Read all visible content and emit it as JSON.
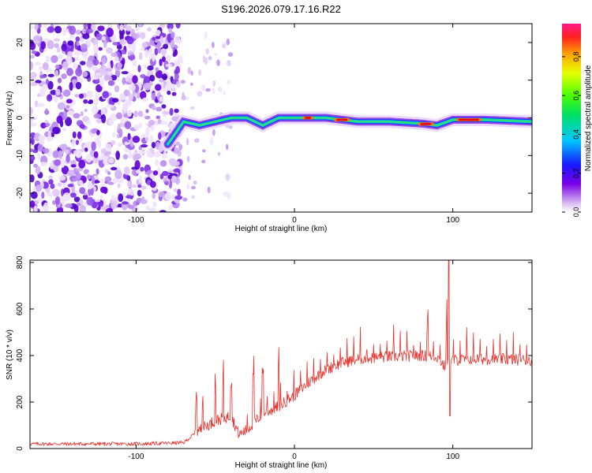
{
  "title": "S196.2026.079.17.16.R22",
  "chart_data": [
    {
      "type": "heatmap",
      "xlabel": "Height of straight line (km)",
      "ylabel": "Frequency (Hz)",
      "xlim": [
        -167,
        150
      ],
      "ylim": [
        -25,
        25
      ],
      "xticks": [
        -100,
        0,
        100
      ],
      "yticks": [
        -20,
        -10,
        0,
        10,
        20
      ],
      "colorbar": {
        "label": "Normalized spectral amplitude",
        "range": [
          0.0,
          0.97
        ],
        "ticks": [
          0.0,
          0.2,
          0.4,
          0.6,
          0.8
        ]
      },
      "ridge": {
        "description": "dominant frequency track",
        "x": [
          -80,
          -70,
          -60,
          -50,
          -40,
          -30,
          -20,
          -10,
          0,
          20,
          40,
          60,
          80,
          90,
          100,
          120,
          150
        ],
        "y": [
          -7,
          -1,
          -2,
          -1,
          0,
          0,
          -2,
          0,
          0,
          0,
          -1,
          -1,
          -1.5,
          -2,
          -0.5,
          -0.5,
          -1
        ]
      }
    },
    {
      "type": "line",
      "xlabel": "Height of straight line (km)",
      "ylabel": "SNR (10 * v/v)",
      "xlim": [
        -167,
        150
      ],
      "ylim": [
        0,
        810
      ],
      "xticks": [
        -100,
        0,
        100
      ],
      "yticks": [
        0,
        200,
        400,
        600,
        800
      ],
      "series": [
        {
          "name": "SNR",
          "color": "#e8312b",
          "anchors_x": [
            -167,
            -100,
            -70,
            -60,
            -50,
            -40,
            -35,
            -30,
            -20,
            -10,
            0,
            10,
            20,
            30,
            40,
            60,
            80,
            90,
            95,
            100,
            110,
            130,
            150
          ],
          "anchors_y": [
            20,
            20,
            25,
            80,
            120,
            140,
            60,
            80,
            150,
            180,
            230,
            290,
            340,
            370,
            385,
            395,
            400,
            395,
            350,
            380,
            385,
            385,
            380
          ],
          "spikes_x": [
            -62,
            -58,
            -50,
            -45,
            -40,
            -26,
            -20,
            -10,
            84,
            96,
            98
          ]
        }
      ]
    }
  ]
}
